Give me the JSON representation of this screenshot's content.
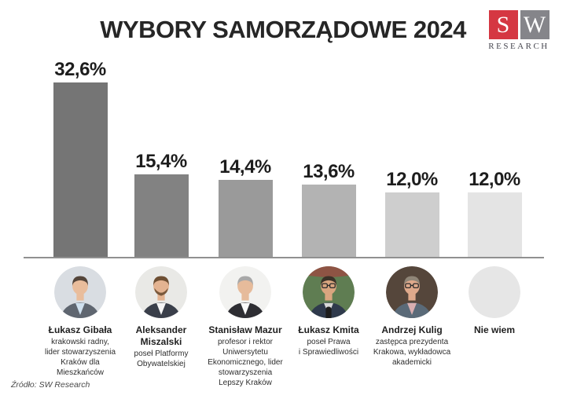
{
  "header": {
    "title": "WYBORY SAMORZĄDOWE 2024"
  },
  "logo": {
    "letter_red": "S",
    "letter_gray": "W",
    "caption": "RESEARCH",
    "red_color": "#d4ololololol",
    "square_red": "#d53742",
    "square_gray": "#85858a",
    "caption_color": "#474750"
  },
  "chart_data": {
    "type": "bar",
    "title": "WYBORY SAMORZĄDOWE 2024",
    "categories": [
      "Łukasz Gibała",
      "Aleksander Miszalski",
      "Stanisław Mazur",
      "Łukasz Kmita",
      "Andrzej Kulig",
      "Nie wiem"
    ],
    "values": [
      32.6,
      15.4,
      14.4,
      13.6,
      12.0,
      12.0
    ],
    "value_labels": [
      "32,6%",
      "15,4%",
      "14,4%",
      "13,6%",
      "12,0%",
      "12,0%"
    ],
    "bar_colors": [
      "#757575",
      "#828282",
      "#9a9a9a",
      "#b3b3b3",
      "#cecece",
      "#e4e4e4"
    ],
    "xlabel": "",
    "ylabel": "",
    "ylim": [
      0,
      35
    ],
    "grid": false,
    "legend": false
  },
  "people": [
    {
      "name": "Łukasz Gibała",
      "description": "krakowski radny,\nlider stowarzyszenia\nKraków dla\nMieszkańców",
      "avatar": {
        "bg": "#d9dde2",
        "skin": "#e9bd9c",
        "hair": "#54453a",
        "jacket": "#5f6670",
        "shirt": "#cfe0ee"
      }
    },
    {
      "name": "Aleksander Miszalski",
      "description": "poseł Platformy\nObywatelskiej",
      "avatar": {
        "bg": "#e9e9e6",
        "skin": "#e3b391",
        "hair": "#6e4f33",
        "jacket": "#3a3f4a",
        "shirt": "#f5f5f5",
        "beard": "#6e4f33"
      }
    },
    {
      "name": "Stanisław Mazur",
      "description": "profesor i rektor\nUniwersytetu\nEkonomicznego, lider\nstowarzyszenia\nLepszy Kraków",
      "avatar": {
        "bg": "#f2f2f0",
        "skin": "#e6bb9b",
        "hair": "#a8a8a8",
        "jacket": "#2e2e33",
        "shirt": "#fafafa"
      }
    },
    {
      "name": "Łukasz Kmita",
      "description": "poseł Prawa\ni Sprawiedliwości",
      "avatar": {
        "bg": "#5f7d52",
        "skin": "#d9a57f",
        "hair": "#3b3228",
        "jacket": "#2f3a4c",
        "shirt": "#d8d8d8",
        "glasses": true,
        "mic": true,
        "red_band": "#9e4740"
      }
    },
    {
      "name": "Andrzej Kulig",
      "description": "zastępca prezydenta\nKrakowa, wykładowca\nakademicki",
      "avatar": {
        "bg": "#55463b",
        "skin": "#dfa98b",
        "hair": "#8f8577",
        "jacket": "#5a6a78",
        "shirt": "#d8aeb0",
        "glasses": true
      }
    },
    {
      "name": "Nie wiem",
      "description": "",
      "avatar": {
        "bg": "#e6e6e6",
        "empty": true
      }
    }
  ],
  "footer": {
    "source": "Źródło: SW Research"
  }
}
